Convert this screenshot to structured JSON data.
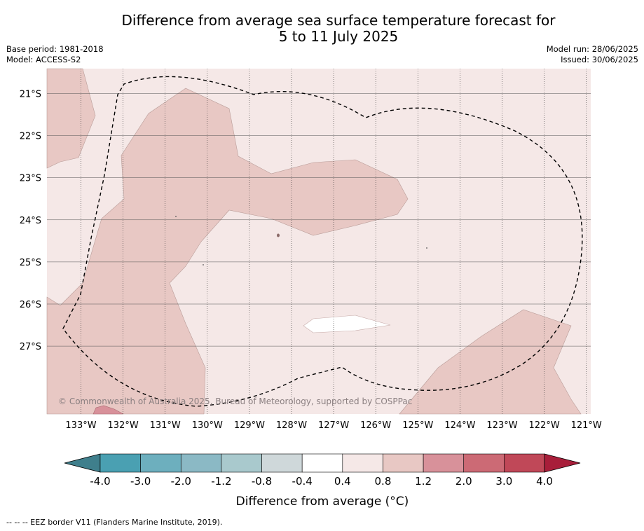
{
  "title_line1": "Difference from average sea surface temperature forecast for",
  "title_line2": "5 to 11 July 2025",
  "meta_left": {
    "base_period": "Base period: 1981-2018",
    "model": "Model: ACCESS-S2"
  },
  "meta_right": {
    "model_run": "Model run: 28/06/2025",
    "issued": "Issued: 30/06/2025"
  },
  "copyright": "© Commonwealth of Australia 2025, Bureau of Meteorology, supported by COSPPac",
  "lon_labels": [
    "133°W",
    "132°W",
    "131°W",
    "130°W",
    "129°W",
    "128°W",
    "127°W",
    "126°W",
    "125°W",
    "124°W",
    "123°W",
    "122°W",
    "121°W"
  ],
  "lat_labels": [
    "21°S",
    "22°S",
    "23°S",
    "24°S",
    "25°S",
    "26°S",
    "27°S"
  ],
  "colorbar": {
    "title": "Difference from average (°C)",
    "ticks": [
      "-4.0",
      "-3.0",
      "-2.0",
      "-1.2",
      "-0.8",
      "-0.4",
      "0.4",
      "0.8",
      "1.2",
      "2.0",
      "3.0",
      "4.0"
    ],
    "colors": [
      "#4aa0b2",
      "#6dafbe",
      "#8bb9c5",
      "#a9c9cd",
      "#cfd8da",
      "#ffffff",
      "#f5e8e7",
      "#e8c8c4",
      "#d8919a",
      "#cc6a75",
      "#c04858"
    ],
    "under_color": "#3f7f8c",
    "over_color": "#a81e3a"
  },
  "footer": "--  --  -- EEZ border V11 (Flanders Marine Institute, 2019)."
}
